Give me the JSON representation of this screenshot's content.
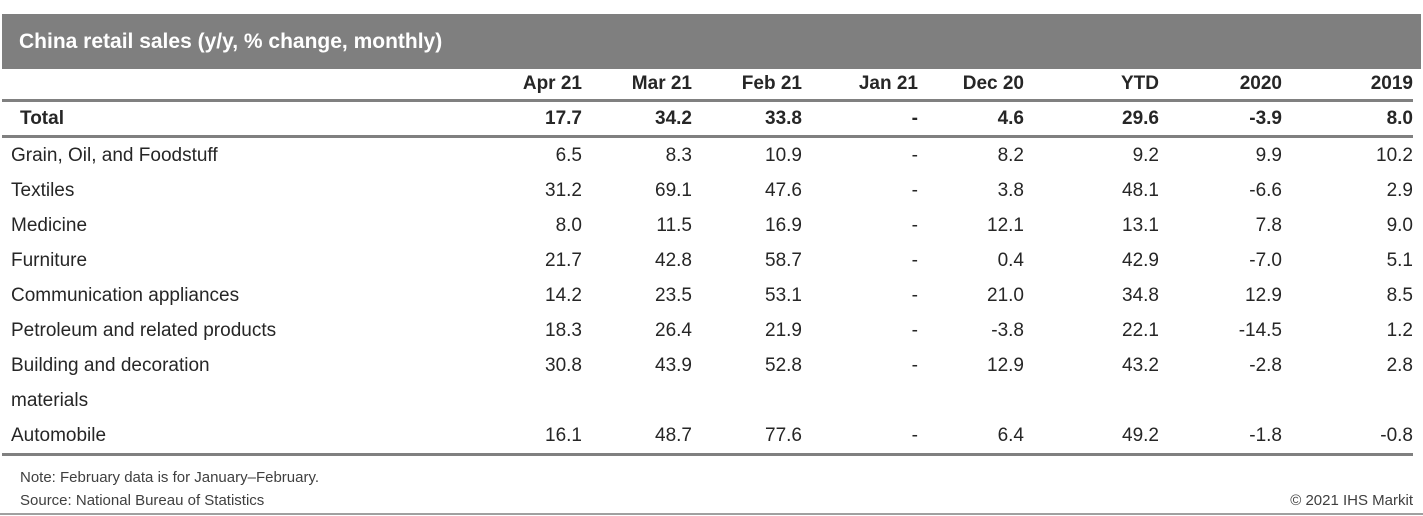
{
  "title_bar": {
    "title": "China retail sales (y/y, % change, monthly)"
  },
  "table": {
    "columns": [
      "Apr 21",
      "Mar 21",
      "Feb 21",
      "Jan 21",
      "Dec 20",
      "YTD",
      "2020",
      "2019"
    ],
    "rows": [
      {
        "label": "Total",
        "bold": true,
        "values": [
          "17.7",
          "34.2",
          "33.8",
          "-",
          "4.6",
          "29.6",
          "-3.9",
          "8.0"
        ]
      },
      {
        "label": "Grain, Oil, and Foodstuff",
        "bold": false,
        "values": [
          "6.5",
          "8.3",
          "10.9",
          "-",
          "8.2",
          "9.2",
          "9.9",
          "10.2"
        ]
      },
      {
        "label": "Textiles",
        "bold": false,
        "values": [
          "31.2",
          "69.1",
          "47.6",
          "-",
          "3.8",
          "48.1",
          "-6.6",
          "2.9"
        ]
      },
      {
        "label": "Medicine",
        "bold": false,
        "values": [
          "8.0",
          "11.5",
          "16.9",
          "-",
          "12.1",
          "13.1",
          "7.8",
          "9.0"
        ]
      },
      {
        "label": "Furniture",
        "bold": false,
        "values": [
          "21.7",
          "42.8",
          "58.7",
          "-",
          "0.4",
          "42.9",
          "-7.0",
          "5.1"
        ]
      },
      {
        "label": "Communication appliances",
        "bold": false,
        "values": [
          "14.2",
          "23.5",
          "53.1",
          "-",
          "21.0",
          "34.8",
          "12.9",
          "8.5"
        ]
      },
      {
        "label": "Petroleum and related products",
        "bold": false,
        "values": [
          "18.3",
          "26.4",
          "21.9",
          "-",
          "-3.8",
          "22.1",
          "-14.5",
          "1.2"
        ]
      },
      {
        "label": "Building and decoration\nmaterials",
        "bold": false,
        "values": [
          "30.8",
          "43.9",
          "52.8",
          "-",
          "12.9",
          "43.2",
          "-2.8",
          "2.8"
        ]
      },
      {
        "label": "Automobile",
        "bold": false,
        "values": [
          "16.1",
          "48.7",
          "77.6",
          "-",
          "6.4",
          "49.2",
          "-1.8",
          "-0.8"
        ]
      }
    ]
  },
  "footer": {
    "note": "Note: February data is for January–February.",
    "source": "Source: National Bureau of Statistics",
    "copyright": "© 2021 IHS Markit"
  },
  "colors": {
    "title_bar_gray": "#7f7f7f",
    "rule_gray": "#808080",
    "body_text": "#262626",
    "footer_text": "#3f3f3f"
  },
  "chart_data": {
    "type": "table",
    "title": "China retail sales (y/y, % change, monthly)",
    "columns": [
      "Apr 21",
      "Mar 21",
      "Feb 21",
      "Jan 21",
      "Dec 20",
      "YTD",
      "2020",
      "2019"
    ],
    "rows": [
      {
        "category": "Total",
        "values": [
          17.7,
          34.2,
          33.8,
          null,
          4.6,
          29.6,
          -3.9,
          8.0
        ]
      },
      {
        "category": "Grain, Oil, and Foodstuff",
        "values": [
          6.5,
          8.3,
          10.9,
          null,
          8.2,
          9.2,
          9.9,
          10.2
        ]
      },
      {
        "category": "Textiles",
        "values": [
          31.2,
          69.1,
          47.6,
          null,
          3.8,
          48.1,
          -6.6,
          2.9
        ]
      },
      {
        "category": "Medicine",
        "values": [
          8.0,
          11.5,
          16.9,
          null,
          12.1,
          13.1,
          7.8,
          9.0
        ]
      },
      {
        "category": "Furniture",
        "values": [
          21.7,
          42.8,
          58.7,
          null,
          0.4,
          42.9,
          -7.0,
          5.1
        ]
      },
      {
        "category": "Communication appliances",
        "values": [
          14.2,
          23.5,
          53.1,
          null,
          21.0,
          34.8,
          12.9,
          8.5
        ]
      },
      {
        "category": "Petroleum and related products",
        "values": [
          18.3,
          26.4,
          21.9,
          null,
          -3.8,
          22.1,
          -14.5,
          1.2
        ]
      },
      {
        "category": "Building and decoration materials",
        "values": [
          30.8,
          43.9,
          52.8,
          null,
          12.9,
          43.2,
          -2.8,
          2.8
        ]
      },
      {
        "category": "Automobile",
        "values": [
          16.1,
          48.7,
          77.6,
          null,
          6.4,
          49.2,
          -1.8,
          -0.8
        ]
      }
    ],
    "note": "Note: February data is for January–February.",
    "source": "Source: National Bureau of Statistics",
    "missing_value_marker": "-"
  }
}
